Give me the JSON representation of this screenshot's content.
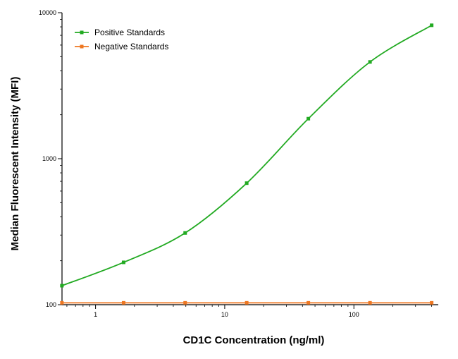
{
  "chart_data": {
    "type": "line",
    "title": "",
    "xlabel": "CD1C Concentration (ng/ml)",
    "ylabel": "Median Fluorescent Intensity (MFI)",
    "x_scale": "log",
    "y_scale": "log",
    "xlim": [
      0.55,
      450
    ],
    "ylim": [
      100,
      10000
    ],
    "x_ticks": [
      1,
      10,
      100
    ],
    "x_tick_labels": [
      "1",
      "10",
      "100"
    ],
    "y_ticks": [
      100,
      1000,
      10000
    ],
    "y_tick_labels": [
      "100",
      "1000",
      "10000"
    ],
    "grid": false,
    "legend_position": "top-left",
    "series": [
      {
        "name": "Positive Standards",
        "color": "#22aa22",
        "x": [
          0.549,
          1.65,
          4.94,
          14.8,
          44.4,
          133.3,
          400
        ],
        "y": [
          135,
          195,
          310,
          680,
          1880,
          4600,
          8200
        ]
      },
      {
        "name": "Negative Standards",
        "color": "#ee7722",
        "x": [
          0.549,
          1.65,
          4.94,
          14.8,
          44.4,
          133.3,
          400
        ],
        "y": [
          103,
          103,
          103,
          103,
          103,
          103,
          103
        ]
      }
    ]
  }
}
